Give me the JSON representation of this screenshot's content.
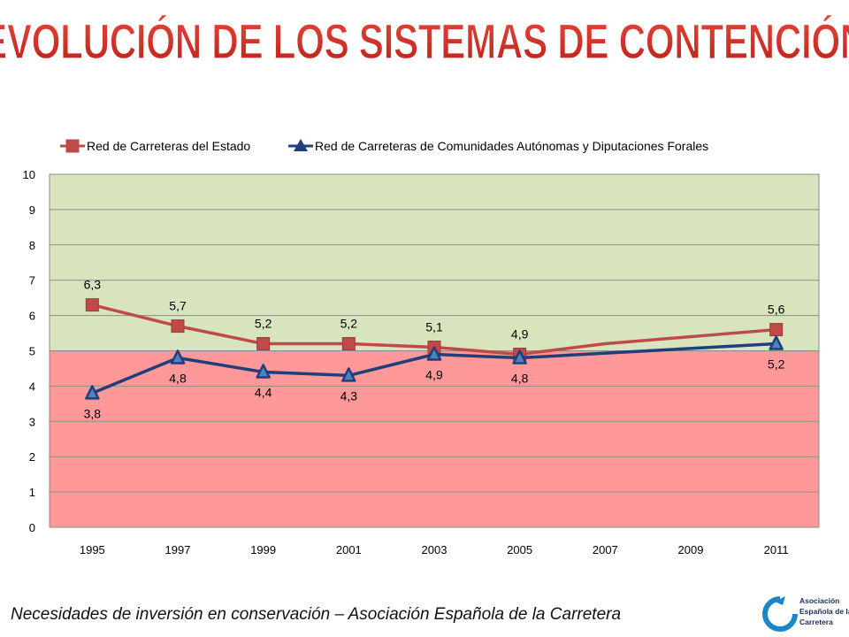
{
  "slide": {
    "title": "EVOLUCIÓN DE LOS SISTEMAS DE CONTENCIÓN",
    "caption": "Necesidades de inversión en conservación – Asociación Española de la Carretera",
    "logo_text": [
      "Asociación",
      "Española de la",
      "Carretera"
    ]
  },
  "colors": {
    "title_fill": "#d9342b",
    "zone_above": "#d7e4bd",
    "zone_below": "#ff9999",
    "series_estado": "#be4b48",
    "series_ccaa": "#1f3e7a"
  },
  "chart_data": {
    "type": "line",
    "x": [
      1995,
      1997,
      1999,
      2001,
      2003,
      2005,
      2007,
      2009,
      2011
    ],
    "x_tick_labels": [
      "1995",
      "1997",
      "1999",
      "2001",
      "2003",
      "2005",
      "2007",
      "2009",
      "2011"
    ],
    "y_tick_labels": [
      "0",
      "1",
      "2",
      "3",
      "4",
      "5",
      "6",
      "7",
      "8",
      "9",
      "10"
    ],
    "ylim": [
      0,
      10
    ],
    "threshold": 5,
    "legend_position": "top",
    "series": [
      {
        "name": "Red de Carreteras del Estado",
        "marker": "square",
        "points": [
          {
            "x": 1995,
            "y": 6.3,
            "label": "6,3"
          },
          {
            "x": 1997,
            "y": 5.7,
            "label": "5,7"
          },
          {
            "x": 1999,
            "y": 5.2,
            "label": "5,2"
          },
          {
            "x": 2001,
            "y": 5.2,
            "label": "5,2"
          },
          {
            "x": 2003,
            "y": 5.1,
            "label": "5,1"
          },
          {
            "x": 2005,
            "y": 4.9,
            "label": "4,9"
          },
          {
            "x": 2007,
            "y": 5.2,
            "label": ""
          },
          {
            "x": 2011,
            "y": 5.6,
            "label": "5,6"
          }
        ]
      },
      {
        "name": "Red de Carreteras de Comunidades Autónomas y Diputaciones Forales",
        "marker": "triangle",
        "points": [
          {
            "x": 1995,
            "y": 3.8,
            "label": "3,8"
          },
          {
            "x": 1997,
            "y": 4.8,
            "label": "4,8"
          },
          {
            "x": 1999,
            "y": 4.4,
            "label": "4,4"
          },
          {
            "x": 2001,
            "y": 4.3,
            "label": "4,3"
          },
          {
            "x": 2003,
            "y": 4.9,
            "label": "4,9"
          },
          {
            "x": 2005,
            "y": 4.8,
            "label": "4,8"
          },
          {
            "x": 2011,
            "y": 5.2,
            "label": "5,2"
          }
        ]
      }
    ]
  }
}
